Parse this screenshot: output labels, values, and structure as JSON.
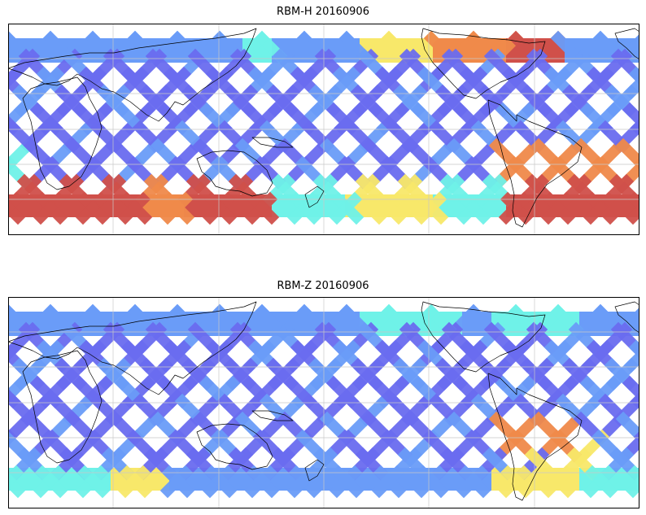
{
  "figure": {
    "panels": [
      {
        "id": "top",
        "title": "RBM-H 20160906",
        "variable": "RBM-H",
        "date": "20160906"
      },
      {
        "id": "bottom",
        "title": "RBM-Z 20160906",
        "variable": "RBM-Z",
        "date": "20160906"
      }
    ],
    "colormap": "jet",
    "colors": {
      "low": "#6a6cf0",
      "low_mid": "#6a9cf8",
      "mid": "#6ff2e8",
      "mid_high": "#f8e86a",
      "high": "#f08a4a",
      "highest": "#d0504a",
      "coastline": "#000000",
      "gridline": "#c8c8c8"
    }
  }
}
